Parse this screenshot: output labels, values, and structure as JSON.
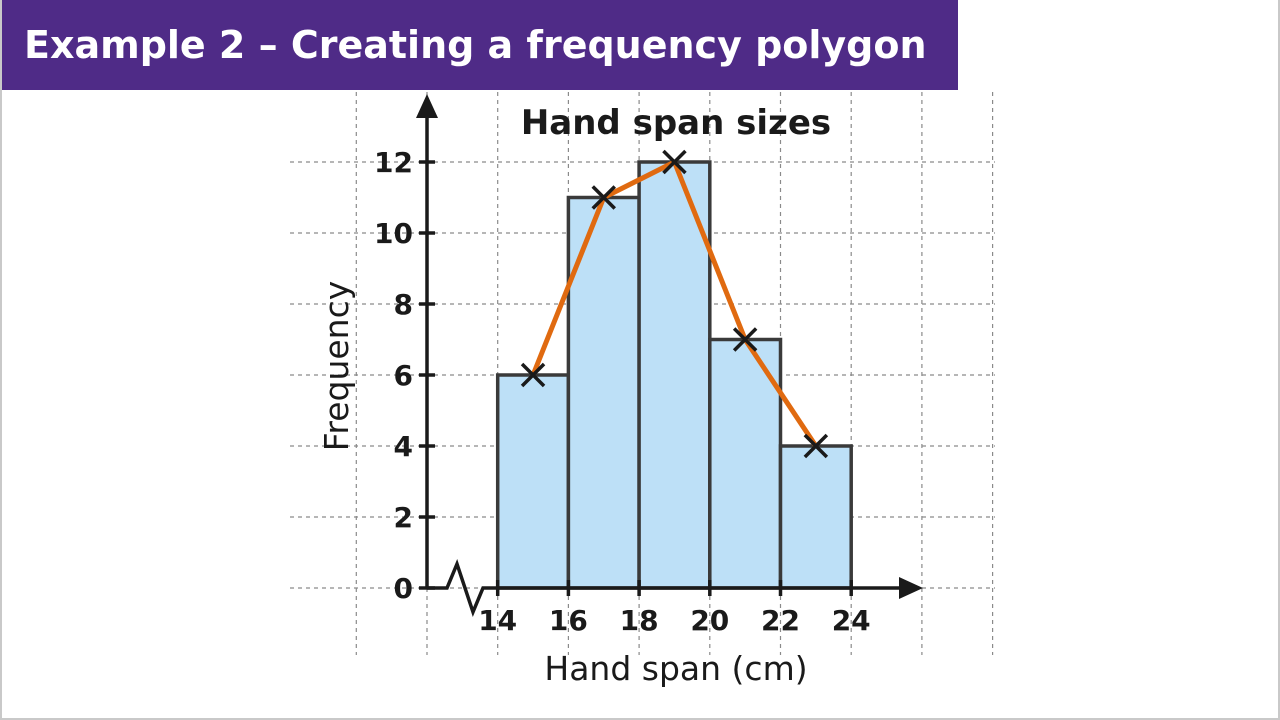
{
  "header": {
    "title": "Example 2 – Creating a frequency polygon"
  },
  "colors": {
    "banner": "#4f2b87",
    "bar_fill": "#bde0f7",
    "polygon": "#e06a10",
    "ink": "#1a1a1a"
  },
  "chart_data": {
    "type": "bar",
    "title": "Hand span sizes",
    "xlabel": "Hand span (cm)",
    "ylabel": "Frequency",
    "x_ticks": [
      14,
      16,
      18,
      20,
      22,
      24
    ],
    "y_ticks": [
      0,
      2,
      4,
      6,
      8,
      10,
      12
    ],
    "xlim": [
      12,
      26
    ],
    "ylim": [
      0,
      14
    ],
    "x_axis_break": true,
    "grid": true,
    "bins": [
      {
        "from": 14,
        "to": 16,
        "value": 6
      },
      {
        "from": 16,
        "to": 18,
        "value": 11
      },
      {
        "from": 18,
        "to": 20,
        "value": 12
      },
      {
        "from": 20,
        "to": 22,
        "value": 7
      },
      {
        "from": 22,
        "to": 24,
        "value": 4
      }
    ],
    "polygon": {
      "x": [
        15,
        17,
        19,
        21,
        23
      ],
      "y": [
        6,
        11,
        12,
        7,
        4
      ],
      "marker": "x"
    }
  }
}
